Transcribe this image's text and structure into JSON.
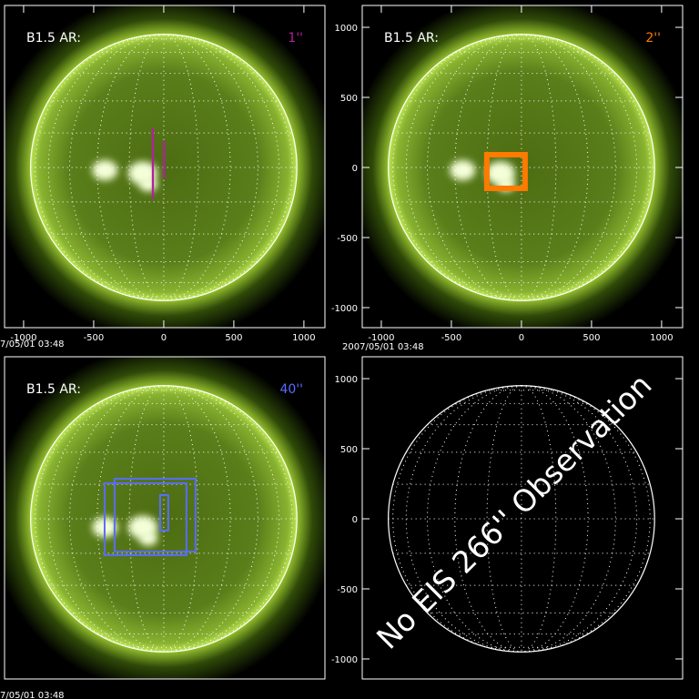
{
  "chart_data": [
    {
      "type": "solar-image",
      "label": "B1.5 AR:",
      "slit": "1''",
      "color": "#b4209e",
      "timestamp": "7/05/01 03:48",
      "xlim": [
        -1136,
        1150
      ],
      "ylim": [
        -1143,
        1156
      ],
      "xticks": [
        -1000,
        -500,
        0,
        500,
        1000
      ],
      "rects": [
        {
          "x": [
            -85,
            -70
          ],
          "y": [
            -227,
            279
          ]
        },
        {
          "x": [
            -5,
            10
          ],
          "y": [
            -78,
            188
          ]
        }
      ]
    },
    {
      "type": "solar-image",
      "label": "B1.5 AR:",
      "slit": "2''",
      "color": "#ff7a00",
      "timestamp": "2007/05/01 03:48",
      "xlim": [
        -1136,
        1150
      ],
      "ylim": [
        -1143,
        1156
      ],
      "xticks": [
        -1000,
        -500,
        0,
        500,
        1000
      ],
      "yticks": [
        -1000,
        -500,
        0,
        500,
        1000
      ],
      "rects": [
        {
          "x": [
            -247,
            26
          ],
          "y": [
            -149,
            91
          ]
        }
      ]
    },
    {
      "type": "solar-image",
      "label": "B1.5 AR:",
      "slit": "40''",
      "color": "#5a6cff",
      "timestamp": "7/05/01 03:48",
      "xlim": [
        -1136,
        1150
      ],
      "ylim": [
        -1143,
        1156
      ],
      "rects": [
        {
          "x": [
            -422,
            162
          ],
          "y": [
            -260,
            253
          ]
        },
        {
          "x": [
            -351,
            227
          ],
          "y": [
            -234,
            286
          ]
        },
        {
          "x": [
            -26,
            32
          ],
          "y": [
            -84,
            169
          ]
        }
      ]
    },
    {
      "type": "empty-grid",
      "annotation": "No EIS 266'' Observation",
      "xlim": [
        -1136,
        1150
      ],
      "ylim": [
        -1143,
        1156
      ],
      "yticks": [
        -1000,
        -500,
        0,
        500,
        1000
      ]
    }
  ]
}
